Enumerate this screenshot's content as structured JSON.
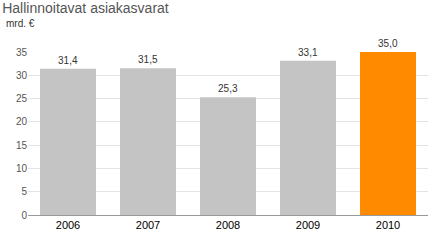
{
  "chart_data": {
    "type": "bar",
    "title": "Hallinnoitavat asiakasvarat",
    "subtitle": "mrd. €",
    "categories": [
      "2006",
      "2007",
      "2008",
      "2009",
      "2010"
    ],
    "values": [
      31.4,
      31.5,
      25.3,
      33.1,
      35.0
    ],
    "value_labels": [
      "31,4",
      "31,5",
      "25,3",
      "33,1",
      "35,0"
    ],
    "colors": [
      "#c4c4c4",
      "#c4c4c4",
      "#c4c4c4",
      "#c4c4c4",
      "#ff8a00"
    ],
    "ylim": [
      0,
      35
    ],
    "yticks": [
      0,
      5,
      10,
      15,
      20,
      25,
      30,
      35
    ],
    "grid": true,
    "data_labels": true
  }
}
